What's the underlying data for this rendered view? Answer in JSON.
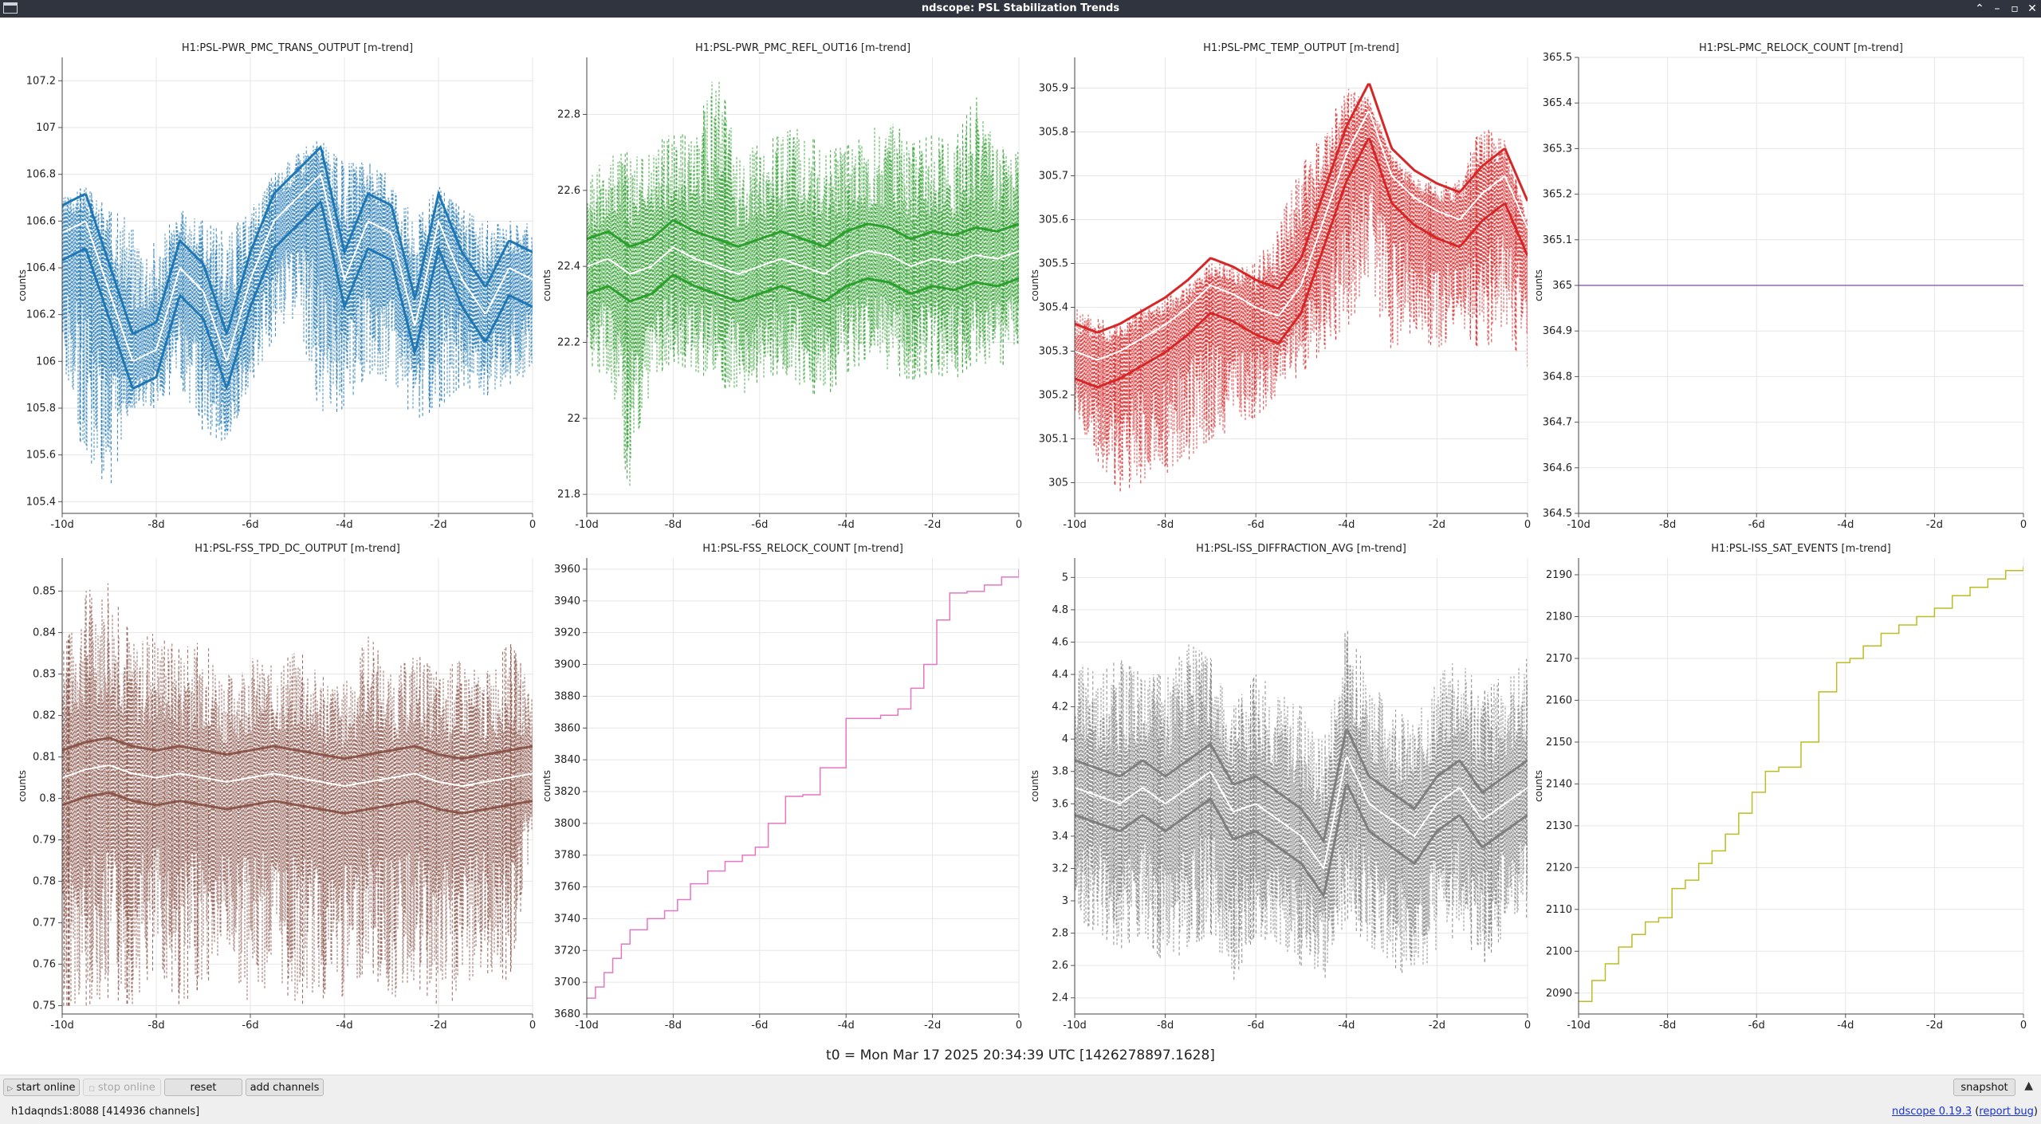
{
  "window": {
    "title": "ndscope: PSL Stabilization Trends"
  },
  "plots": [
    {
      "title": "H1:PSL-PWR_PMC_TRANS_OUTPUT [m-trend]",
      "ylabel": "counts",
      "color": "#1f77b4",
      "x_ticks": [
        "-10d",
        "-8d",
        "-6d",
        "-4d",
        "-2d",
        "0"
      ],
      "y_ticks": [
        "105.4",
        "105.6",
        "105.8",
        "106",
        "106.2",
        "106.4",
        "106.6",
        "106.8",
        "107",
        "107.2"
      ],
      "chart_data": {
        "type": "line",
        "style": "min/mean/max envelope",
        "xlim": [
          -10,
          0
        ],
        "ylim": [
          105.35,
          107.3
        ],
        "x": [
          -10,
          -9.5,
          -9,
          -8.5,
          -8,
          -7.5,
          -7,
          -6.5,
          -6,
          -5.5,
          -5,
          -4.5,
          -4,
          -3.5,
          -3,
          -2.5,
          -2,
          -1.5,
          -1,
          -0.5,
          0
        ],
        "mean": [
          106.55,
          106.6,
          106.3,
          106.0,
          106.05,
          106.4,
          106.3,
          106.0,
          106.35,
          106.6,
          106.7,
          106.8,
          106.35,
          106.6,
          106.55,
          106.15,
          106.6,
          106.35,
          106.2,
          106.4,
          106.35
        ],
        "min": [
          105.85,
          105.6,
          105.45,
          105.8,
          105.8,
          105.9,
          105.7,
          105.65,
          105.9,
          106.1,
          106.2,
          105.75,
          105.8,
          105.95,
          105.9,
          105.75,
          105.8,
          105.9,
          105.85,
          105.9,
          105.95
        ],
        "max": [
          106.7,
          106.75,
          106.65,
          106.6,
          106.5,
          106.65,
          106.6,
          106.55,
          106.65,
          106.8,
          106.9,
          106.95,
          106.85,
          106.85,
          106.8,
          106.6,
          106.75,
          106.65,
          106.6,
          106.6,
          106.6
        ]
      }
    },
    {
      "title": "H1:PSL-PWR_PMC_REFL_OUT16 [m-trend]",
      "ylabel": "counts",
      "color": "#2ca02c",
      "x_ticks": [
        "-10d",
        "-8d",
        "-6d",
        "-4d",
        "-2d",
        "0"
      ],
      "y_ticks": [
        "21.8",
        "22",
        "22.2",
        "22.4",
        "22.6",
        "22.8"
      ],
      "chart_data": {
        "type": "line",
        "style": "min/mean/max envelope",
        "xlim": [
          -10,
          0
        ],
        "ylim": [
          21.75,
          22.95
        ],
        "x": [
          -10,
          -9.5,
          -9,
          -8.5,
          -8,
          -7.5,
          -7,
          -6.5,
          -6,
          -5.5,
          -5,
          -4.5,
          -4,
          -3.5,
          -3,
          -2.5,
          -2,
          -1.5,
          -1,
          -0.5,
          0
        ],
        "mean": [
          22.4,
          22.42,
          22.38,
          22.4,
          22.45,
          22.42,
          22.4,
          22.38,
          22.4,
          22.42,
          22.4,
          22.38,
          22.42,
          22.44,
          22.43,
          22.4,
          22.42,
          22.41,
          22.43,
          22.42,
          22.44
        ],
        "min": [
          22.15,
          22.1,
          21.8,
          22.1,
          22.15,
          22.12,
          22.1,
          22.05,
          22.1,
          22.12,
          22.08,
          22.05,
          22.12,
          22.15,
          22.12,
          22.1,
          22.12,
          22.1,
          22.15,
          22.12,
          22.2
        ],
        "max": [
          22.62,
          22.7,
          22.7,
          22.72,
          22.75,
          22.75,
          22.93,
          22.7,
          22.72,
          22.75,
          22.78,
          22.7,
          22.72,
          22.75,
          22.8,
          22.72,
          22.75,
          22.73,
          22.85,
          22.72,
          22.7
        ]
      }
    },
    {
      "title": "H1:PSL-PMC_TEMP_OUTPUT [m-trend]",
      "ylabel": "counts",
      "color": "#d62728",
      "x_ticks": [
        "-10d",
        "-8d",
        "-6d",
        "-4d",
        "-2d",
        "0"
      ],
      "y_ticks": [
        "305",
        "305.1",
        "305.2",
        "305.3",
        "305.4",
        "305.5",
        "305.6",
        "305.7",
        "305.8",
        "305.9"
      ],
      "chart_data": {
        "type": "line",
        "style": "min/mean/max envelope",
        "xlim": [
          -10,
          0
        ],
        "ylim": [
          304.93,
          305.97
        ],
        "x": [
          -10,
          -9.5,
          -9,
          -8.5,
          -8,
          -7.5,
          -7,
          -6.5,
          -6,
          -5.5,
          -5,
          -4.5,
          -4,
          -3.5,
          -3,
          -2.5,
          -2,
          -1.5,
          -1,
          -0.5,
          0
        ],
        "mean": [
          305.3,
          305.28,
          305.3,
          305.33,
          305.36,
          305.4,
          305.45,
          305.43,
          305.4,
          305.38,
          305.45,
          305.6,
          305.75,
          305.85,
          305.7,
          305.65,
          305.62,
          305.6,
          305.66,
          305.7,
          305.58
        ],
        "min": [
          305.15,
          305.05,
          304.98,
          305.0,
          305.02,
          305.05,
          305.1,
          305.12,
          305.15,
          305.2,
          305.25,
          305.3,
          305.35,
          305.45,
          305.3,
          305.35,
          305.3,
          305.35,
          305.3,
          305.35,
          305.25
        ],
        "max": [
          305.4,
          305.38,
          305.36,
          305.4,
          305.42,
          305.45,
          305.5,
          305.5,
          305.5,
          305.6,
          305.72,
          305.8,
          305.9,
          305.88,
          305.75,
          305.7,
          305.68,
          305.7,
          305.82,
          305.78,
          305.6
        ]
      }
    },
    {
      "title": "H1:PSL-PMC_RELOCK_COUNT [m-trend]",
      "ylabel": "counts",
      "color": "#9467bd",
      "x_ticks": [
        "-10d",
        "-8d",
        "-6d",
        "-4d",
        "-2d",
        "0"
      ],
      "y_ticks": [
        "364.5",
        "364.6",
        "364.7",
        "364.8",
        "364.9",
        "365",
        "365.1",
        "365.2",
        "365.3",
        "365.4",
        "365.5"
      ],
      "chart_data": {
        "type": "line",
        "xlim": [
          -10,
          0
        ],
        "ylim": [
          364.5,
          365.5
        ],
        "x": [
          -10,
          0
        ],
        "mean": [
          365,
          365
        ]
      }
    },
    {
      "title": "H1:PSL-FSS_TPD_DC_OUTPUT [m-trend]",
      "ylabel": "counts",
      "color": "#8c564b",
      "x_ticks": [
        "-10d",
        "-8d",
        "-6d",
        "-4d",
        "-2d",
        "0"
      ],
      "y_ticks": [
        "0.75",
        "0.76",
        "0.77",
        "0.78",
        "0.79",
        "0.8",
        "0.81",
        "0.82",
        "0.83",
        "0.84",
        "0.85"
      ],
      "chart_data": {
        "type": "line",
        "style": "min/mean/max envelope",
        "xlim": [
          -10,
          0
        ],
        "ylim": [
          0.748,
          0.858
        ],
        "x": [
          -10,
          -9.5,
          -9,
          -8.5,
          -8,
          -7.5,
          -7,
          -6.5,
          -6,
          -5.5,
          -5,
          -4.5,
          -4,
          -3.5,
          -3,
          -2.5,
          -2,
          -1.5,
          -1,
          -0.5,
          0
        ],
        "mean": [
          0.805,
          0.807,
          0.808,
          0.806,
          0.805,
          0.806,
          0.805,
          0.804,
          0.805,
          0.806,
          0.805,
          0.804,
          0.803,
          0.804,
          0.805,
          0.806,
          0.804,
          0.803,
          0.804,
          0.805,
          0.806
        ],
        "min": [
          0.75,
          0.75,
          0.752,
          0.75,
          0.76,
          0.75,
          0.755,
          0.76,
          0.75,
          0.756,
          0.75,
          0.752,
          0.75,
          0.76,
          0.75,
          0.755,
          0.75,
          0.752,
          0.758,
          0.756,
          0.79
        ],
        "max": [
          0.835,
          0.85,
          0.852,
          0.838,
          0.84,
          0.836,
          0.838,
          0.83,
          0.835,
          0.832,
          0.836,
          0.83,
          0.828,
          0.84,
          0.83,
          0.836,
          0.83,
          0.834,
          0.83,
          0.838,
          0.828
        ]
      }
    },
    {
      "title": "H1:PSL-FSS_RELOCK_COUNT [m-trend]",
      "ylabel": "counts",
      "color": "#e377c2",
      "x_ticks": [
        "-10d",
        "-8d",
        "-6d",
        "-4d",
        "-2d",
        "0"
      ],
      "y_ticks": [
        "3680",
        "3700",
        "3720",
        "3740",
        "3760",
        "3780",
        "3800",
        "3820",
        "3840",
        "3860",
        "3880",
        "3900",
        "3920",
        "3940",
        "3960"
      ],
      "chart_data": {
        "type": "line",
        "step": true,
        "xlim": [
          -10,
          0
        ],
        "ylim": [
          3680,
          3967
        ],
        "x": [
          -10,
          -9.8,
          -9.6,
          -9.4,
          -9.2,
          -9.0,
          -8.6,
          -8.2,
          -7.9,
          -7.6,
          -7.2,
          -6.8,
          -6.4,
          -6.1,
          -5.8,
          -5.4,
          -5.0,
          -4.6,
          -4.0,
          -3.6,
          -3.2,
          -2.8,
          -2.5,
          -2.2,
          -1.9,
          -1.6,
          -1.2,
          -0.8,
          -0.4,
          0
        ],
        "mean": [
          3690,
          3697,
          3706,
          3715,
          3724,
          3733,
          3740,
          3745,
          3752,
          3762,
          3770,
          3776,
          3780,
          3785,
          3800,
          3817,
          3818,
          3835,
          3866,
          3866,
          3868,
          3872,
          3885,
          3900,
          3928,
          3945,
          3946,
          3950,
          3955,
          3960
        ]
      }
    },
    {
      "title": "H1:PSL-ISS_DIFFRACTION_AVG [m-trend]",
      "ylabel": "counts",
      "color": "#7f7f7f",
      "x_ticks": [
        "-10d",
        "-8d",
        "-6d",
        "-4d",
        "-2d",
        "0"
      ],
      "y_ticks": [
        "2.4",
        "2.6",
        "2.8",
        "3",
        "3.2",
        "3.4",
        "3.6",
        "3.8",
        "4",
        "4.2",
        "4.4",
        "4.6",
        "4.8",
        "5"
      ],
      "chart_data": {
        "type": "line",
        "style": "min/mean/max envelope",
        "xlim": [
          -10,
          0
        ],
        "ylim": [
          2.3,
          5.12
        ],
        "x": [
          -10,
          -9.5,
          -9,
          -8.5,
          -8,
          -7.5,
          -7,
          -6.5,
          -6,
          -5.5,
          -5,
          -4.5,
          -4,
          -3.5,
          -3,
          -2.5,
          -2,
          -1.5,
          -1,
          -0.5,
          0
        ],
        "mean": [
          3.7,
          3.65,
          3.6,
          3.7,
          3.6,
          3.7,
          3.8,
          3.55,
          3.6,
          3.5,
          3.4,
          3.2,
          3.9,
          3.6,
          3.5,
          3.4,
          3.6,
          3.7,
          3.5,
          3.6,
          3.7
        ],
        "min": [
          2.9,
          2.8,
          2.7,
          2.8,
          2.6,
          2.7,
          2.8,
          2.5,
          2.8,
          2.7,
          2.6,
          2.5,
          2.9,
          2.7,
          2.6,
          2.5,
          2.7,
          2.8,
          2.6,
          2.8,
          2.9
        ],
        "max": [
          4.5,
          4.4,
          4.5,
          4.4,
          4.4,
          4.6,
          4.5,
          4.2,
          4.4,
          4.3,
          4.2,
          4.0,
          4.7,
          4.4,
          4.2,
          4.1,
          4.4,
          4.5,
          4.3,
          4.4,
          4.5
        ]
      }
    },
    {
      "title": "H1:PSL-ISS_SAT_EVENTS [m-trend]",
      "ylabel": "counts",
      "color": "#bcbd22",
      "x_ticks": [
        "-10d",
        "-8d",
        "-6d",
        "-4d",
        "-2d",
        "0"
      ],
      "y_ticks": [
        "2090",
        "2100",
        "2110",
        "2120",
        "2130",
        "2140",
        "2150",
        "2160",
        "2170",
        "2180",
        "2190"
      ],
      "chart_data": {
        "type": "line",
        "step": true,
        "xlim": [
          -10,
          0
        ],
        "ylim": [
          2085,
          2194
        ],
        "x": [
          -10,
          -9.7,
          -9.4,
          -9.1,
          -8.8,
          -8.5,
          -8.2,
          -7.9,
          -7.6,
          -7.3,
          -7.0,
          -6.7,
          -6.4,
          -6.1,
          -5.8,
          -5.5,
          -5.0,
          -4.6,
          -4.2,
          -3.9,
          -3.6,
          -3.2,
          -2.8,
          -2.4,
          -2.0,
          -1.6,
          -1.2,
          -0.8,
          -0.4,
          0
        ],
        "mean": [
          2088,
          2093,
          2097,
          2101,
          2104,
          2107,
          2108,
          2115,
          2117,
          2121,
          2124,
          2128,
          2133,
          2138,
          2143,
          2144,
          2150,
          2162,
          2169,
          2170,
          2173,
          2176,
          2178,
          2180,
          2182,
          2185,
          2187,
          2189,
          2191,
          2192
        ]
      }
    }
  ],
  "footer": {
    "t0": "t0 = Mon Mar 17 2025 20:34:39 UTC [1426278897.1628]"
  },
  "buttons": {
    "start_online": "start online",
    "stop_online": "stop online",
    "reset": "reset",
    "add_channels": "add channels",
    "snapshot": "snapshot"
  },
  "status": {
    "server": "h1daqnds1:8088",
    "channels": "[414936 channels]",
    "version_prefix": "ndscope",
    "version": "0.19.3",
    "report_bug": "report bug"
  }
}
